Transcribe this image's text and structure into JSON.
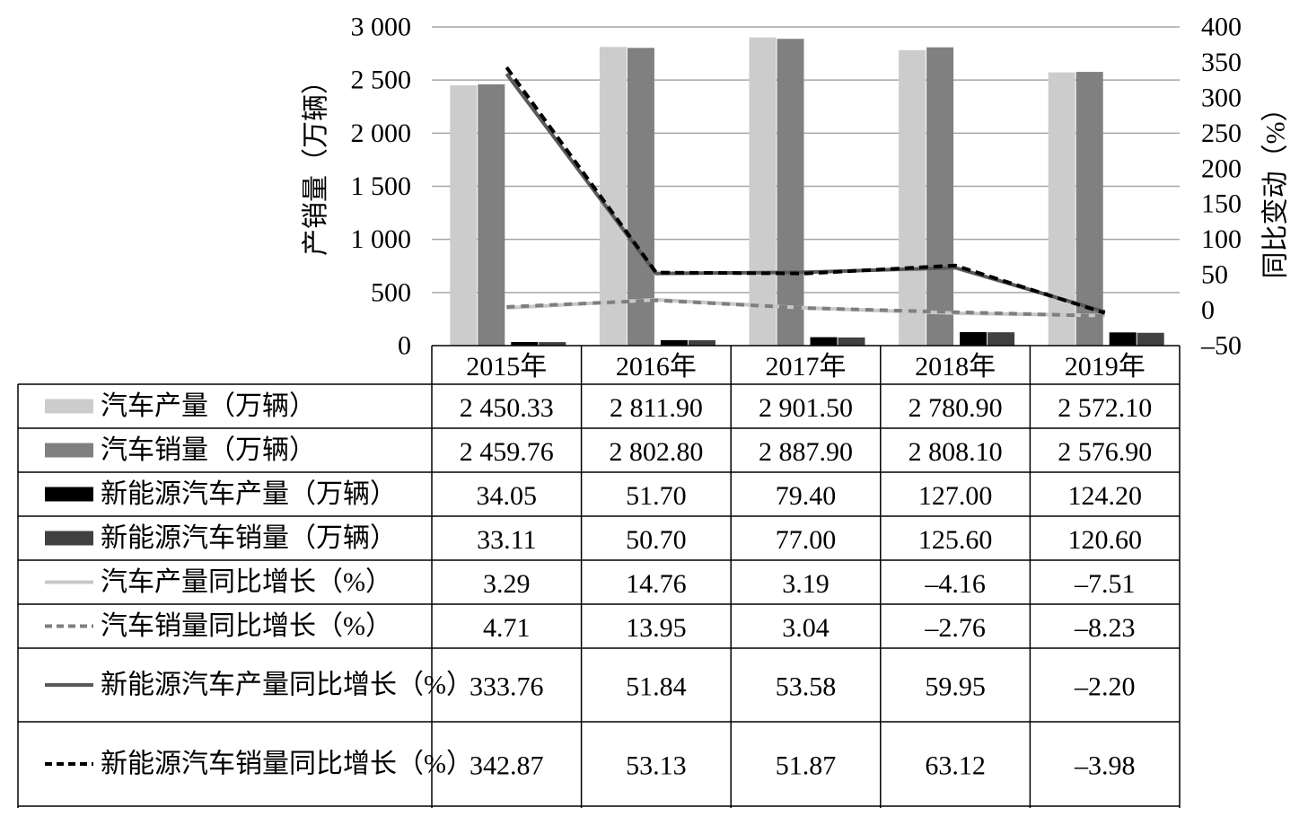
{
  "chart_data": {
    "type": "bar",
    "categories": [
      "2015年",
      "2016年",
      "2017年",
      "2018年",
      "2019年"
    ],
    "y_left": {
      "label": "产销量（万辆）",
      "lim": [
        0,
        3000
      ],
      "ticks": [
        0,
        500,
        1000,
        1500,
        2000,
        2500,
        3000
      ],
      "tick_labels": [
        "0",
        "500",
        "1 000",
        "1 500",
        "2 000",
        "2 500",
        "3 000"
      ]
    },
    "y_right": {
      "label": "同比变动（%）",
      "lim": [
        -50,
        400
      ],
      "ticks": [
        -50,
        0,
        50,
        100,
        150,
        200,
        250,
        300,
        350,
        400
      ],
      "tick_labels": [
        "–50",
        "0",
        "50",
        "100",
        "150",
        "200",
        "250",
        "300",
        "350",
        "400"
      ]
    },
    "grid": "horizontal",
    "legend": "data-table",
    "series": [
      {
        "name": "汽车产量（万辆）",
        "kind": "bar",
        "axis": "left",
        "color": "#cccccc",
        "values": [
          2450.33,
          2811.9,
          2901.5,
          2780.9,
          2572.1
        ],
        "labels": [
          "2 450.33",
          "2 811.90",
          "2 901.50",
          "2 780.90",
          "2 572.10"
        ]
      },
      {
        "name": "汽车销量（万辆）",
        "kind": "bar",
        "axis": "left",
        "color": "#808080",
        "values": [
          2459.76,
          2802.8,
          2887.9,
          2808.1,
          2576.9
        ],
        "labels": [
          "2 459.76",
          "2 802.80",
          "2 887.90",
          "2 808.10",
          "2 576.90"
        ]
      },
      {
        "name": "新能源汽车产量（万辆）",
        "kind": "bar",
        "axis": "left",
        "color": "#000000",
        "values": [
          34.05,
          51.7,
          79.4,
          127.0,
          124.2
        ],
        "labels": [
          "34.05",
          "51.70",
          "79.40",
          "127.00",
          "124.20"
        ]
      },
      {
        "name": "新能源汽车销量（万辆）",
        "kind": "bar",
        "axis": "left",
        "color": "#404040",
        "values": [
          33.11,
          50.7,
          77.0,
          125.6,
          120.6
        ],
        "labels": [
          "33.11",
          "50.70",
          "77.00",
          "125.60",
          "120.60"
        ]
      },
      {
        "name": "汽车产量同比增长（%）",
        "kind": "line",
        "axis": "right",
        "color": "#c8c8c8",
        "dash": "solid",
        "values": [
          3.29,
          14.76,
          3.19,
          -4.16,
          -7.51
        ],
        "labels": [
          "3.29",
          "14.76",
          "3.19",
          "–4.16",
          "–7.51"
        ]
      },
      {
        "name": "汽车销量同比增长（%）",
        "kind": "line",
        "axis": "right",
        "color": "#7f7f7f",
        "dash": "dashed",
        "values": [
          4.71,
          13.95,
          3.04,
          -2.76,
          -8.23
        ],
        "labels": [
          "4.71",
          "13.95",
          "3.04",
          "–2.76",
          "–8.23"
        ]
      },
      {
        "name": "新能源汽车产量同比增长（%）",
        "kind": "line",
        "axis": "right",
        "color": "#595959",
        "dash": "solid",
        "values": [
          333.76,
          51.84,
          53.58,
          59.95,
          -2.2
        ],
        "labels": [
          "333.76",
          "51.84",
          "53.58",
          "59.95",
          "–2.20"
        ]
      },
      {
        "name": "新能源汽车销量同比增长（%）",
        "kind": "line",
        "axis": "right",
        "color": "#000000",
        "dash": "dashed",
        "values": [
          342.87,
          53.13,
          51.87,
          63.12,
          -3.98
        ],
        "labels": [
          "342.87",
          "53.13",
          "51.87",
          "63.12",
          "–3.98"
        ]
      }
    ]
  }
}
